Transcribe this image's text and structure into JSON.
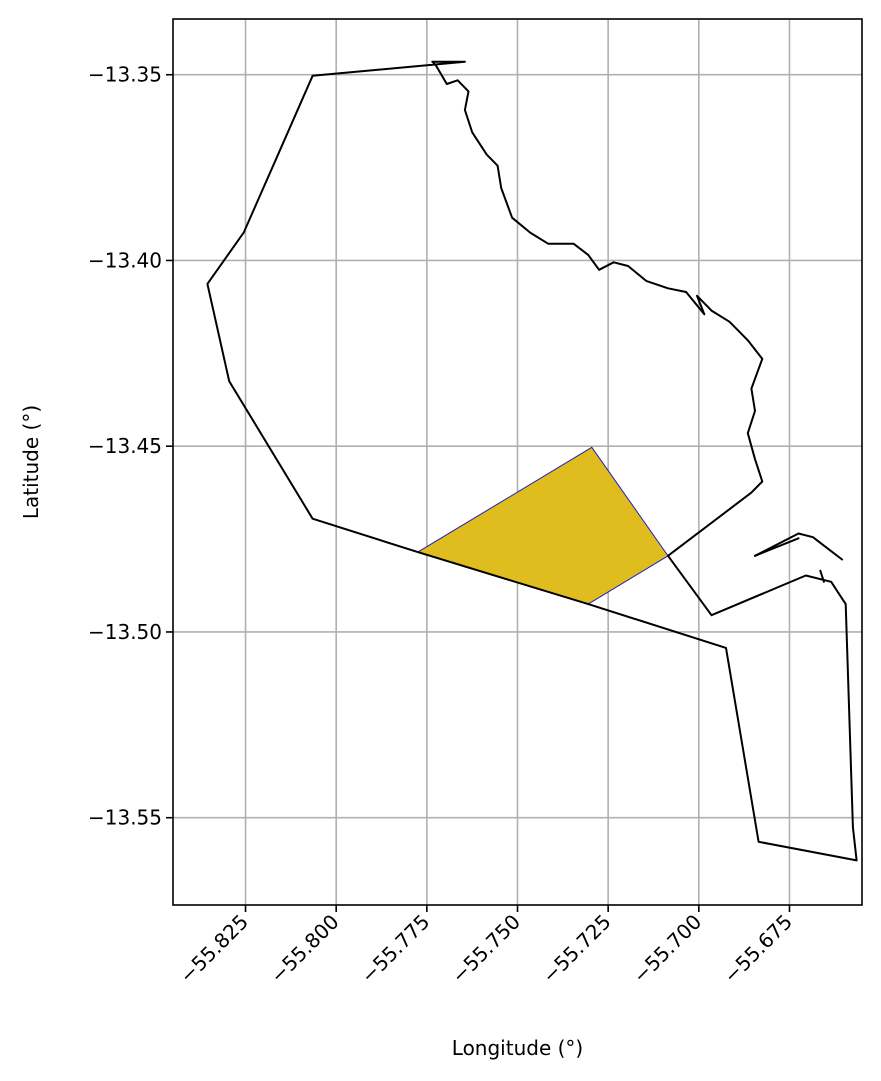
{
  "chart_data": {
    "type": "map",
    "xlabel": "Longitude (°)",
    "ylabel": "Latitude (°)",
    "xlim": [
      -55.845,
      -55.655
    ],
    "ylim": [
      -13.5735,
      -13.335
    ],
    "grid": true,
    "x_ticks": [
      -55.825,
      -55.8,
      -55.775,
      -55.75,
      -55.725,
      -55.7,
      -55.675
    ],
    "y_ticks": [
      -13.35,
      -13.4,
      -13.45,
      -13.5,
      -13.55
    ],
    "x_tick_labels": [
      "−55.825",
      "−55.800",
      "−55.775",
      "−55.750",
      "−55.725",
      "−55.700",
      "−55.675"
    ],
    "y_tick_labels": [
      "−13.35",
      "−13.40",
      "−13.45",
      "−13.50",
      "−13.55"
    ],
    "highlight_color": "#dfbd1f",
    "highlight_edge_color": "#1f1fb4",
    "outline_color": "#000000",
    "highlighted_polygon": [
      [
        -55.7775,
        -13.4785
      ],
      [
        -55.7295,
        -13.4503
      ],
      [
        -55.7085,
        -13.4795
      ],
      [
        -55.7305,
        -13.4925
      ],
      [
        -55.7775,
        -13.4785
      ]
    ],
    "outline_paths": [
      [
        [
          -55.7645,
          -13.3465
        ],
        [
          -55.8065,
          -13.3503
        ],
        [
          -55.8165,
          -13.3725
        ],
        [
          -55.8255,
          -13.3925
        ],
        [
          -55.8355,
          -13.4063
        ],
        [
          -55.8295,
          -13.4325
        ],
        [
          -55.8065,
          -13.4695
        ],
        [
          -55.7775,
          -13.4785
        ],
        [
          -55.7305,
          -13.4925
        ],
        [
          -55.6925,
          -13.5043
        ],
        [
          -55.6835,
          -13.5565
        ],
        [
          -55.6565,
          -13.5615
        ],
        [
          -55.6575,
          -13.5525
        ],
        [
          -55.6595,
          -13.4925
        ],
        [
          -55.6615,
          -13.4895
        ],
        [
          -55.6635,
          -13.4865
        ],
        [
          -55.6705,
          -13.4848
        ],
        [
          -55.6965,
          -13.4955
        ],
        [
          -55.7085,
          -13.4795
        ],
        [
          -55.6855,
          -13.4625
        ],
        [
          -55.6825,
          -13.4595
        ],
        [
          -55.6845,
          -13.4535
        ],
        [
          -55.6865,
          -13.4465
        ],
        [
          -55.6845,
          -13.4405
        ],
        [
          -55.6855,
          -13.4345
        ],
        [
          -55.6825,
          -13.4265
        ],
        [
          -55.6865,
          -13.4215
        ],
        [
          -55.6915,
          -13.4165
        ],
        [
          -55.6965,
          -13.4135
        ],
        [
          -55.7005,
          -13.4095
        ],
        [
          -55.6985,
          -13.4145
        ],
        [
          -55.7035,
          -13.4085
        ],
        [
          -55.7085,
          -13.4075
        ],
        [
          -55.7145,
          -13.4055
        ],
        [
          -55.7195,
          -13.4015
        ],
        [
          -55.7235,
          -13.4005
        ],
        [
          -55.7275,
          -13.4025
        ],
        [
          -55.7305,
          -13.3985
        ],
        [
          -55.7345,
          -13.3955
        ],
        [
          -55.7415,
          -13.3955
        ],
        [
          -55.7465,
          -13.3925
        ],
        [
          -55.7515,
          -13.3885
        ],
        [
          -55.7545,
          -13.3805
        ],
        [
          -55.7555,
          -13.3745
        ],
        [
          -55.7585,
          -13.3715
        ],
        [
          -55.7625,
          -13.3655
        ],
        [
          -55.7645,
          -13.3595
        ],
        [
          -55.7635,
          -13.3545
        ],
        [
          -55.7665,
          -13.3515
        ],
        [
          -55.7695,
          -13.3525
        ],
        [
          -55.7725,
          -13.3475
        ],
        [
          -55.7735,
          -13.3465
        ],
        [
          -55.7645,
          -13.3465
        ]
      ],
      [
        [
          -55.6845,
          -13.4795
        ],
        [
          -55.6725,
          -13.4735
        ],
        [
          -55.6685,
          -13.4745
        ],
        [
          -55.6645,
          -13.4775
        ],
        [
          -55.6605,
          -13.4805
        ]
      ],
      [
        [
          -55.6845,
          -13.4795
        ],
        [
          -55.6725,
          -13.4748
        ]
      ],
      [
        [
          -55.6665,
          -13.4835
        ],
        [
          -55.6655,
          -13.4865
        ]
      ]
    ]
  }
}
